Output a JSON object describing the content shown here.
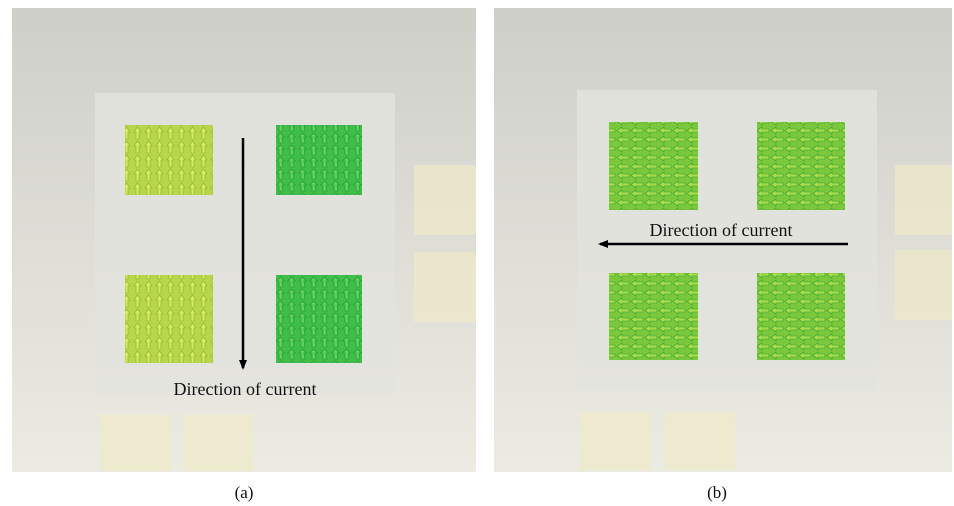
{
  "panels": [
    {
      "caption": "(a)",
      "annotation": "Direction of current"
    },
    {
      "caption": "(b)",
      "annotation": "Direction of current"
    }
  ]
}
